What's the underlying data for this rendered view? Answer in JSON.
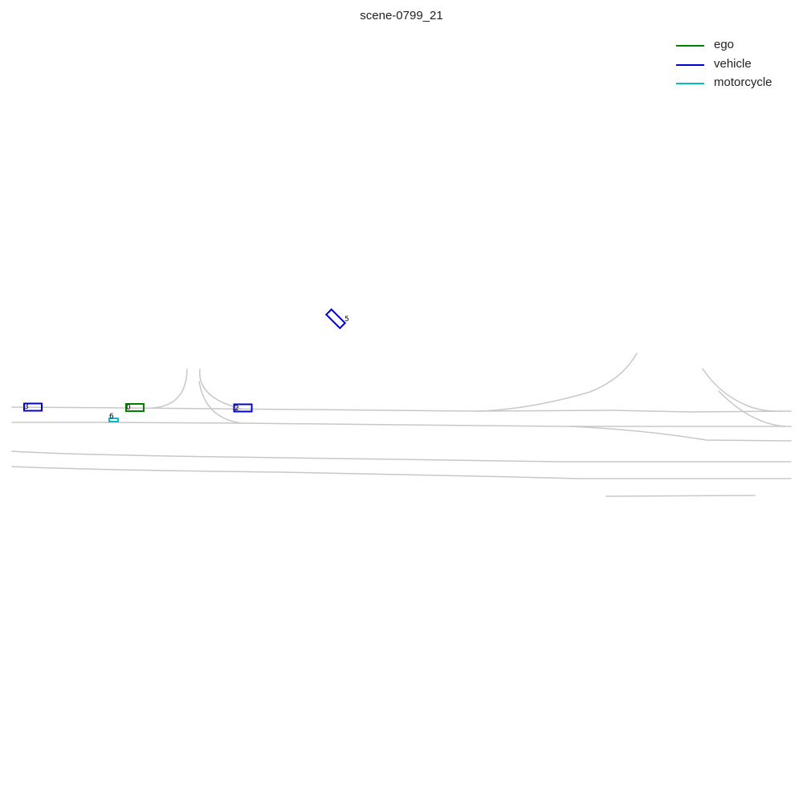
{
  "title": "scene-0799_21",
  "legend": [
    {
      "label": "ego",
      "color": "#008000"
    },
    {
      "label": "vehicle",
      "color": "#0000cc"
    },
    {
      "label": "motorcycle",
      "color": "#00bfbf"
    }
  ],
  "agents": [
    {
      "id": "0",
      "category": "ego"
    },
    {
      "id": "2",
      "category": "vehicle"
    },
    {
      "id": "3",
      "category": "vehicle"
    },
    {
      "id": "5",
      "category": "vehicle"
    },
    {
      "id": "6",
      "category": "motorcycle"
    }
  ],
  "map_line_color": "#c8c8c8"
}
